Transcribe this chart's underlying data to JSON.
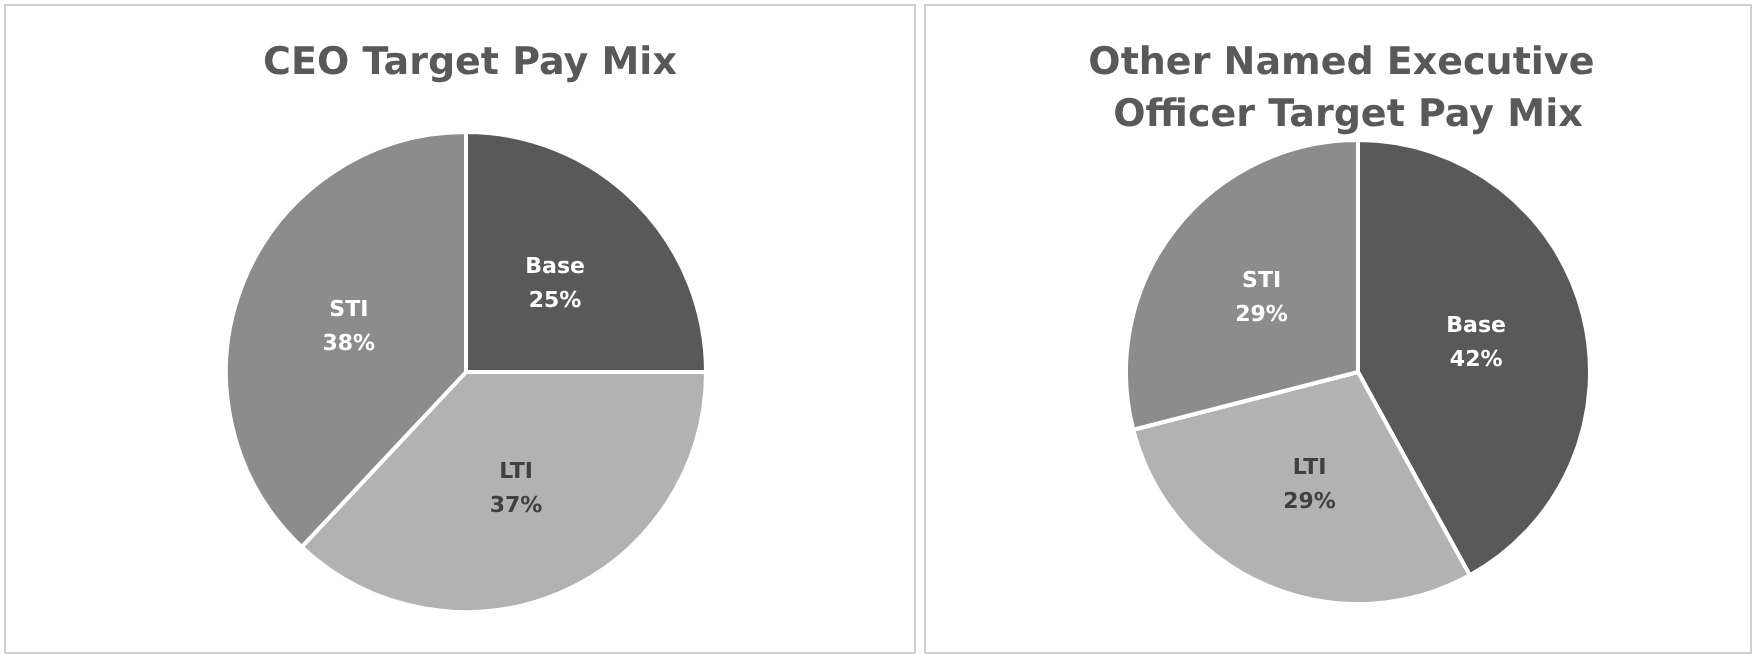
{
  "chart_data": [
    {
      "type": "pie",
      "title": "CEO Target Pay Mix",
      "categories": [
        "Base",
        "LTI",
        "STI"
      ],
      "values": [
        25,
        37,
        38
      ],
      "colors": [
        "#595959",
        "#b2b2b2",
        "#8c8c8c"
      ],
      "value_labels": [
        "25%",
        "37%",
        "38%"
      ]
    },
    {
      "type": "pie",
      "title": "Other Named Executive Officer Target Pay Mix",
      "categories": [
        "Base",
        "LTI",
        "STI"
      ],
      "values": [
        42,
        29,
        29
      ],
      "colors": [
        "#595959",
        "#b2b2b2",
        "#8c8c8c"
      ],
      "value_labels": [
        "42%",
        "29%",
        "29%"
      ]
    }
  ]
}
